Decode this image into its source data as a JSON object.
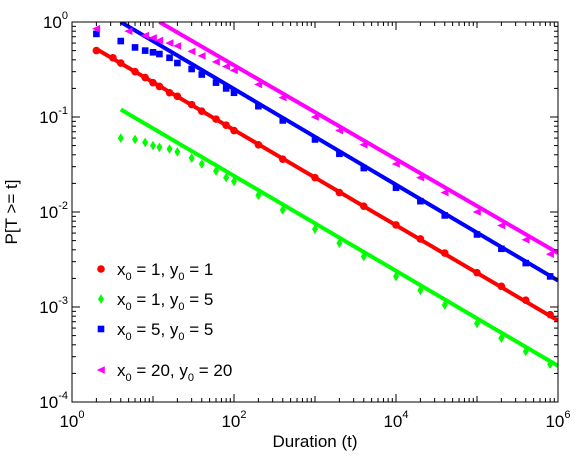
{
  "chart_data": {
    "type": "scatter",
    "xlabel": "Duration (t)",
    "ylabel": "P[T >= t]",
    "xscale": "log",
    "yscale": "log",
    "xlim": [
      1,
      1000000
    ],
    "ylim": [
      0.0001,
      1
    ],
    "grid": false,
    "legend_position": "bottom-left",
    "x_ticks": [
      {
        "base": "10",
        "exp": "0",
        "value": 1
      },
      {
        "base": "10",
        "exp": "2",
        "value": 100
      },
      {
        "base": "10",
        "exp": "4",
        "value": 10000
      },
      {
        "base": "10",
        "exp": "6",
        "value": 1000000
      }
    ],
    "y_ticks": [
      {
        "base": "10",
        "exp": "0",
        "value": 1
      },
      {
        "base": "10",
        "exp": "-1",
        "value": 0.1
      },
      {
        "base": "10",
        "exp": "-2",
        "value": 0.01
      },
      {
        "base": "10",
        "exp": "-3",
        "value": 0.001
      },
      {
        "base": "10",
        "exp": "-4",
        "value": 0.0001
      }
    ],
    "series": [
      {
        "legend": [
          {
            "t": "x",
            "sub": false
          },
          {
            "t": "0",
            "sub": true
          },
          {
            "t": " = 1, y",
            "sub": false
          },
          {
            "t": "0",
            "sub": true
          },
          {
            "t": " = 1",
            "sub": false
          }
        ],
        "color": "#ff0000",
        "marker": "circle",
        "points": [
          [
            2,
            0.5
          ],
          [
            3.2,
            0.42
          ],
          [
            4,
            0.37
          ],
          [
            6,
            0.3
          ],
          [
            8,
            0.26
          ],
          [
            10,
            0.23
          ],
          [
            12,
            0.21
          ],
          [
            16,
            0.18
          ],
          [
            20,
            0.165
          ],
          [
            30,
            0.135
          ],
          [
            40,
            0.115
          ],
          [
            60,
            0.095
          ],
          [
            80,
            0.082
          ],
          [
            100,
            0.072
          ],
          [
            200,
            0.051
          ],
          [
            400,
            0.036
          ],
          [
            1000,
            0.023
          ],
          [
            2000,
            0.016
          ],
          [
            4000,
            0.0115
          ],
          [
            10000,
            0.0073
          ],
          [
            20000,
            0.0052
          ],
          [
            40000,
            0.0037
          ],
          [
            100000,
            0.0023
          ],
          [
            200000,
            0.00165
          ],
          [
            400000,
            0.00118
          ],
          [
            800000,
            0.00083
          ]
        ],
        "fit": {
          "x": [
            2,
            1000000
          ],
          "y": [
            0.52,
            0.00072
          ]
        }
      },
      {
        "legend": [
          {
            "t": "x",
            "sub": false
          },
          {
            "t": "0",
            "sub": true
          },
          {
            "t": " = 1, y",
            "sub": false
          },
          {
            "t": "0",
            "sub": true
          },
          {
            "t": " = 5",
            "sub": false
          }
        ],
        "color": "#00ff00",
        "marker": "diamond",
        "points": [
          [
            4,
            0.06
          ],
          [
            6,
            0.058
          ],
          [
            8,
            0.054
          ],
          [
            10,
            0.05
          ],
          [
            12,
            0.048
          ],
          [
            16,
            0.046
          ],
          [
            20,
            0.043
          ],
          [
            30,
            0.037
          ],
          [
            40,
            0.032
          ],
          [
            60,
            0.027
          ],
          [
            80,
            0.023
          ],
          [
            100,
            0.021
          ],
          [
            200,
            0.015
          ],
          [
            400,
            0.0105
          ],
          [
            1000,
            0.0066
          ],
          [
            2000,
            0.0047
          ],
          [
            4000,
            0.0034
          ],
          [
            10000,
            0.0021
          ],
          [
            20000,
            0.0015
          ],
          [
            40000,
            0.00105
          ],
          [
            100000,
            0.00067
          ],
          [
            200000,
            0.00047
          ],
          [
            400000,
            0.00034
          ],
          [
            800000,
            0.00025
          ]
        ],
        "fit": {
          "x": [
            4,
            1000000
          ],
          "y": [
            0.12,
            0.00024
          ]
        }
      },
      {
        "legend": [
          {
            "t": "x",
            "sub": false
          },
          {
            "t": "0",
            "sub": true
          },
          {
            "t": " = 5, y",
            "sub": false
          },
          {
            "t": "0",
            "sub": true
          },
          {
            "t": " = 5",
            "sub": false
          }
        ],
        "color": "#0000ff",
        "marker": "square",
        "points": [
          [
            2,
            0.75
          ],
          [
            4,
            0.63
          ],
          [
            6,
            0.54
          ],
          [
            8,
            0.5
          ],
          [
            10,
            0.48
          ],
          [
            12,
            0.46
          ],
          [
            16,
            0.42
          ],
          [
            20,
            0.37
          ],
          [
            30,
            0.32
          ],
          [
            40,
            0.28
          ],
          [
            60,
            0.23
          ],
          [
            80,
            0.2
          ],
          [
            100,
            0.18
          ],
          [
            200,
            0.13
          ],
          [
            400,
            0.092
          ],
          [
            1000,
            0.058
          ],
          [
            2000,
            0.041
          ],
          [
            4000,
            0.029
          ],
          [
            10000,
            0.018
          ],
          [
            20000,
            0.013
          ],
          [
            40000,
            0.0092
          ],
          [
            100000,
            0.0058
          ],
          [
            200000,
            0.0041
          ],
          [
            400000,
            0.0029
          ],
          [
            800000,
            0.0021
          ]
        ],
        "fit": {
          "x": [
            4,
            1000000
          ],
          "y": [
            1.0,
            0.0019
          ]
        }
      },
      {
        "legend": [
          {
            "t": "x",
            "sub": false
          },
          {
            "t": "0",
            "sub": true
          },
          {
            "t": " = 20, y",
            "sub": false
          },
          {
            "t": "0",
            "sub": true
          },
          {
            "t": " = 20",
            "sub": false
          }
        ],
        "color": "#ff00ff",
        "marker": "triangle-left",
        "points": [
          [
            2,
            0.85
          ],
          [
            5,
            0.8
          ],
          [
            8,
            0.72
          ],
          [
            10,
            0.68
          ],
          [
            12,
            0.64
          ],
          [
            16,
            0.6
          ],
          [
            20,
            0.56
          ],
          [
            30,
            0.49
          ],
          [
            40,
            0.44
          ],
          [
            60,
            0.38
          ],
          [
            80,
            0.34
          ],
          [
            100,
            0.31
          ],
          [
            200,
            0.22
          ],
          [
            400,
            0.16
          ],
          [
            1000,
            0.1
          ],
          [
            2000,
            0.072
          ],
          [
            4000,
            0.051
          ],
          [
            10000,
            0.032
          ],
          [
            20000,
            0.023
          ],
          [
            40000,
            0.016
          ],
          [
            100000,
            0.01
          ],
          [
            200000,
            0.0072
          ],
          [
            400000,
            0.0051
          ],
          [
            800000,
            0.0036
          ]
        ],
        "fit": {
          "x": [
            12,
            1000000
          ],
          "y": [
            1.0,
            0.0037
          ]
        }
      }
    ]
  }
}
